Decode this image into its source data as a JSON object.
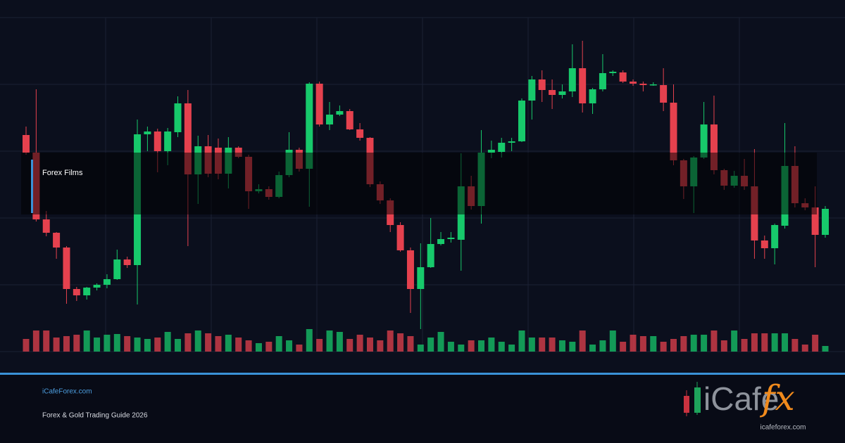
{
  "chart_data": {
    "type": "candlestick",
    "open": [
      61.6,
      56.6,
      37.6,
      33.8,
      29.6,
      17.8,
      16,
      18.2,
      19,
      20.6,
      26.2,
      24.6,
      61.8,
      62.6,
      57,
      62.4,
      70.6,
      50.4,
      58.4,
      58,
      50.6,
      58,
      55.4,
      45.6,
      46.2,
      44,
      50.2,
      57.4,
      52,
      76.2,
      64.6,
      67.4,
      68.4,
      63.2,
      60.8,
      47.6,
      43,
      36,
      28.8,
      17.8,
      24,
      30.6,
      32,
      31.8,
      47,
      41.4,
      56.6,
      56.8,
      59.4,
      59.8,
      71.4,
      77.4,
      74.4,
      73,
      74,
      80.6,
      70.6,
      74.6,
      79.2,
      79.4,
      76.8,
      76.2,
      75.8,
      75.8,
      70.8,
      54.4,
      47,
      55.2,
      64.6,
      51.6,
      47.2,
      50,
      47,
      31.6,
      29.4,
      35.8,
      52.8,
      42.2,
      41,
      33.2
    ],
    "high": [
      64,
      74.6,
      40,
      34,
      30,
      18.4,
      18.4,
      19.4,
      22,
      29,
      27,
      66,
      64,
      63.4,
      63.6,
      72.6,
      74.4,
      61.4,
      61.6,
      60.6,
      61,
      58.4,
      56,
      47.6,
      47,
      51.2,
      62.4,
      58,
      76.6,
      76.8,
      71,
      70,
      69,
      65,
      61,
      48.4,
      43.6,
      36.8,
      29.6,
      30.8,
      38,
      34,
      34,
      56.4,
      50,
      63,
      60,
      60.8,
      60.8,
      72,
      78.4,
      80,
      77.4,
      76,
      87.4,
      88.4,
      75,
      84.6,
      80,
      80,
      77.4,
      76.8,
      76.6,
      80.6,
      76,
      54.8,
      55.6,
      71,
      72.8,
      52,
      51.4,
      54.8,
      57.6,
      33,
      36.4,
      65,
      58.4,
      43.6,
      47,
      41.4
    ],
    "low": [
      56,
      37,
      32.8,
      26.4,
      13.6,
      14.4,
      14.8,
      17.4,
      18,
      20.4,
      23.8,
      13.4,
      57,
      51,
      53,
      61,
      30,
      42,
      49.6,
      49,
      46.4,
      55,
      40.6,
      45,
      43.2,
      43.6,
      49.6,
      51.2,
      41.2,
      64,
      63,
      67,
      63,
      60,
      46.8,
      42,
      34,
      28.4,
      11,
      6.4,
      23.8,
      30.2,
      31,
      23,
      40.4,
      36.4,
      55,
      55.2,
      57,
      59.6,
      66,
      71,
      69,
      72,
      72.4,
      68,
      67.6,
      74,
      78.4,
      76.4,
      75.6,
      74,
      75.6,
      68.4,
      53,
      43.4,
      39.4,
      54.8,
      50.4,
      46,
      46.6,
      46,
      26.4,
      26.4,
      24.8,
      35,
      41,
      40.2,
      24,
      32.4
    ],
    "close": [
      56.6,
      37.6,
      33.8,
      29.6,
      17.8,
      16,
      18.2,
      19,
      20.6,
      26.2,
      24.6,
      61.8,
      62.6,
      57,
      62.6,
      70.6,
      50.4,
      58.4,
      50.6,
      50.6,
      58,
      55.4,
      45.6,
      46.2,
      44,
      50.2,
      57.4,
      52,
      76.2,
      64.6,
      67.4,
      68.4,
      63.2,
      60.8,
      47.6,
      43,
      36,
      28.8,
      17.8,
      24,
      30.6,
      32,
      32.4,
      47,
      41.4,
      56.6,
      57.4,
      59.4,
      59.8,
      71.4,
      77.4,
      74.4,
      73,
      74,
      80.6,
      70.6,
      74.6,
      79.2,
      79.6,
      76.8,
      76.2,
      75.8,
      76,
      70.8,
      54.4,
      47,
      55.2,
      64.6,
      51.6,
      47.2,
      50,
      47,
      31.6,
      29.4,
      36,
      52.8,
      42.2,
      41,
      33.2,
      40.6
    ],
    "volume": [
      18,
      30,
      30,
      20,
      22,
      24,
      30,
      20,
      24,
      25,
      22,
      20,
      18,
      20,
      28,
      18,
      26,
      30,
      26,
      22,
      24,
      20,
      16,
      12,
      14,
      22,
      16,
      10,
      32,
      18,
      30,
      28,
      18,
      24,
      20,
      16,
      30,
      26,
      22,
      10,
      20,
      28,
      14,
      10,
      16,
      16,
      20,
      14,
      10,
      30,
      20,
      20,
      20,
      16,
      14,
      30,
      10,
      16,
      30,
      14,
      24,
      22,
      22,
      14,
      18,
      22,
      24,
      24,
      30,
      16,
      30,
      18,
      26,
      26,
      26,
      26,
      18,
      10,
      24,
      8
    ],
    "ylim": [
      0,
      95
    ],
    "yticks": [
      0,
      19,
      38,
      57,
      76,
      95
    ],
    "volume_lim": [
      0,
      100
    ],
    "grid": true,
    "up_color": "#17c96b",
    "down_color": "#e5414e",
    "overlay_label": "Forex Films"
  },
  "footer": {
    "site": "iCafeForex.com",
    "subtitle": "Forex & Gold Trading Guide 2026"
  },
  "logo": {
    "text": "iCafe",
    "accent": "fx",
    "url": "icafeforex.com"
  }
}
